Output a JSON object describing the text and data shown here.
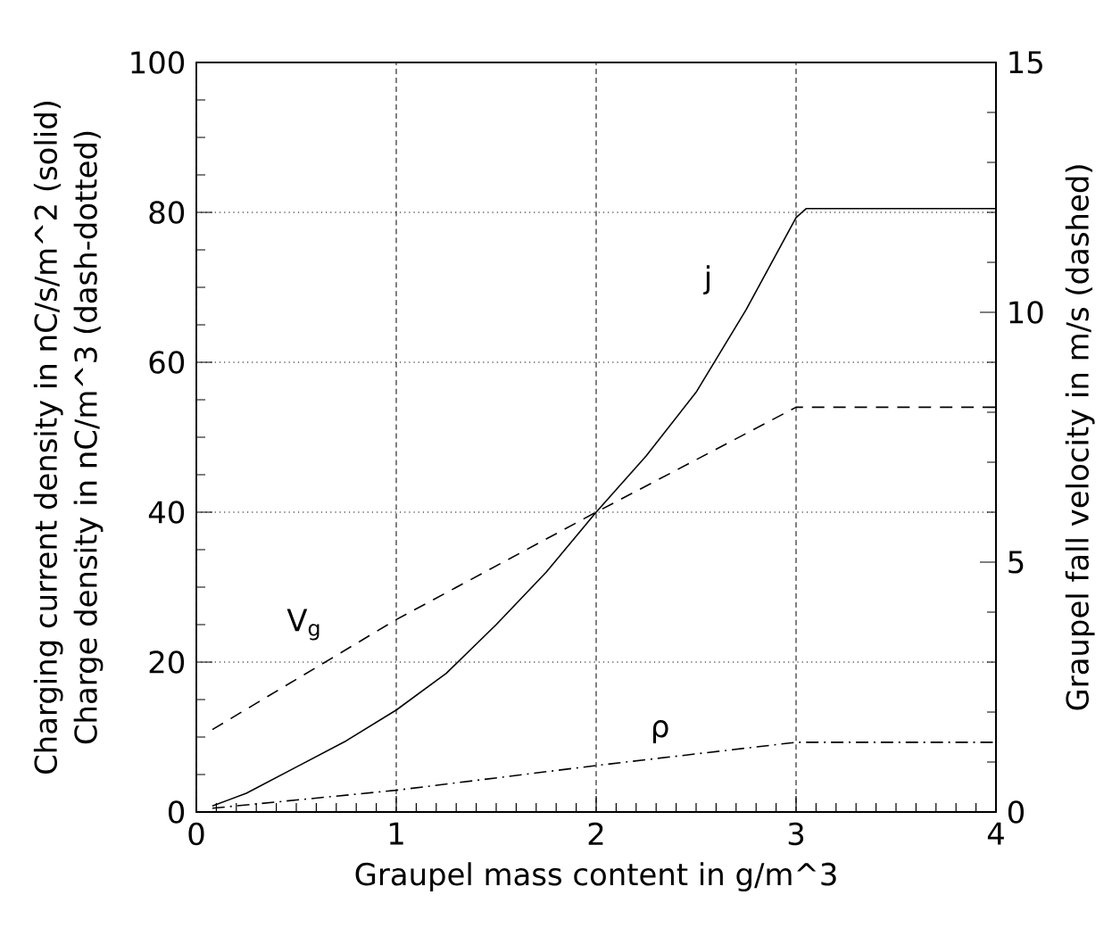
{
  "chart_data": {
    "type": "line",
    "xlabel": "Graupel mass content in g/m^3",
    "ylabel": "Charging current density in nC/s/m^2 (solid)",
    "y2label": "Graupel fall velocity in m/s (dashed)",
    "xlim": [
      0,
      4
    ],
    "xticks": [
      0,
      1,
      2,
      3,
      4
    ],
    "ylim": [
      0,
      100
    ],
    "yticks": [
      0,
      20,
      40,
      60,
      80,
      100
    ],
    "y2lim": [
      0,
      15
    ],
    "y2ticks": [
      0,
      5,
      10,
      15
    ],
    "grid": true,
    "marker": "none",
    "series": [
      {
        "color": "#000000",
        "line_style": "solid",
        "x": [
          0.08,
          0.25,
          0.5,
          0.75,
          1,
          1.25,
          1.5,
          1.75,
          2,
          2.25,
          2.5,
          2.75,
          3,
          3.05,
          4
        ],
        "values": [
          0.8,
          2.5,
          6,
          9.5,
          13.6,
          18.5,
          25,
          32,
          40,
          47.5,
          56,
          67,
          79.3,
          80.5,
          80.5
        ]
      },
      {
        "color": "#000000",
        "line_style": "dashdot",
        "x": [
          0.08,
          1,
          2,
          3,
          3.05,
          4
        ],
        "values": [
          0.5,
          2.9,
          6.2,
          9.3,
          9.3,
          9.3
        ]
      },
      {
        "color": "#000000",
        "line_style": "dashed",
        "axis": "y2",
        "x": [
          0.08,
          1,
          2,
          3,
          3.05,
          4
        ],
        "values": [
          1.65,
          3.85,
          6.0,
          8.1,
          8.1,
          8.1
        ]
      }
    ],
    "annotations": [
      "Charge density in nC/m^3 (dash-dotted)",
      "j",
      "V$_{g}$",
      "ρ"
    ]
  }
}
